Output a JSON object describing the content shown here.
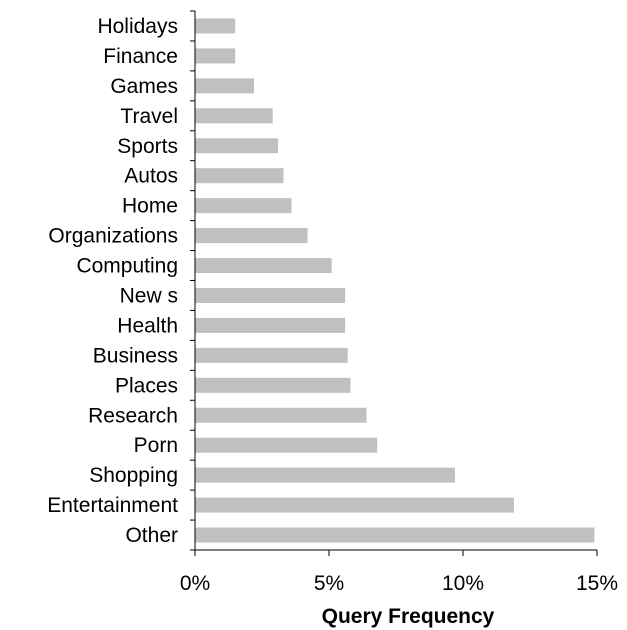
{
  "chart_data": {
    "type": "bar",
    "orientation": "horizontal",
    "categories": [
      "Holidays",
      "Finance",
      "Games",
      "Travel",
      "Sports",
      "Autos",
      "Home",
      "Organizations",
      "Computing",
      "New s",
      "Health",
      "Business",
      "Places",
      "Research",
      "Porn",
      "Shopping",
      "Entertainment",
      "Other"
    ],
    "values": [
      1.5,
      1.5,
      2.2,
      2.9,
      3.1,
      3.3,
      3.6,
      4.2,
      5.1,
      5.6,
      5.6,
      5.7,
      5.8,
      6.4,
      6.8,
      9.7,
      11.9,
      14.9
    ],
    "xlim": [
      0,
      15
    ],
    "xticks": [
      0,
      5,
      10,
      15
    ],
    "xtick_labels": [
      "0%",
      "5%",
      "10%",
      "15%"
    ],
    "xlabel": "Query Frequency",
    "ylabel": "",
    "title": "",
    "grid": false,
    "bar_color": "#c0c0c0"
  }
}
